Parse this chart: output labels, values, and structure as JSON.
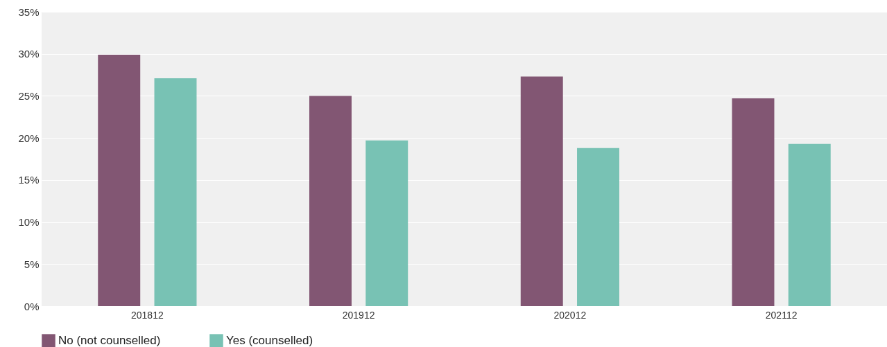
{
  "chart_data": {
    "type": "bar",
    "categories": [
      "201812",
      "201912",
      "202012",
      "202112"
    ],
    "series": [
      {
        "name": "No (not counselled)",
        "color": "#825673",
        "values": [
          29.9,
          25.0,
          27.3,
          24.7
        ]
      },
      {
        "name": "Yes (counselled)",
        "color": "#78c2b4",
        "values": [
          27.1,
          19.7,
          18.8,
          19.3
        ]
      }
    ],
    "ylim": [
      0,
      35
    ],
    "yticks": [
      {
        "value": 0,
        "label": "0%"
      },
      {
        "value": 5,
        "label": "5%"
      },
      {
        "value": 10,
        "label": "10%"
      },
      {
        "value": 15,
        "label": "15%"
      },
      {
        "value": 20,
        "label": "20%"
      },
      {
        "value": 25,
        "label": "25%"
      },
      {
        "value": 30,
        "label": "30%"
      },
      {
        "value": 35,
        "label": "35%"
      }
    ],
    "grid": "y",
    "legend": "bottom"
  }
}
